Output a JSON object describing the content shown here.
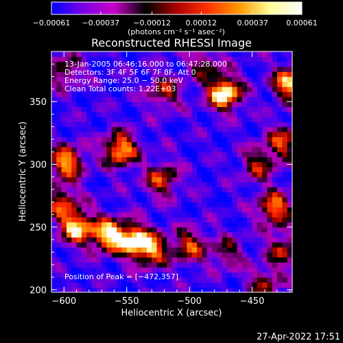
{
  "chart_data": {
    "type": "heatmap",
    "title": "Reconstructed RHESSI Image",
    "xlabel": "Heliocentric X (arcsec)",
    "ylabel": "Heliocentric Y (arcsec)",
    "xlim": [
      -610,
      -418
    ],
    "ylim": [
      198,
      390
    ],
    "x_ticks": [
      -600,
      -550,
      -500,
      -450
    ],
    "x_tick_labels": [
      "−600",
      "−550",
      "−500",
      "−450"
    ],
    "y_ticks": [
      200,
      250,
      300,
      350
    ],
    "y_tick_labels": [
      "200",
      "250",
      "300",
      "350"
    ],
    "colorbar": {
      "min": -0.00061,
      "max": 0.00061,
      "ticks": [
        -0.00061,
        -0.00037,
        -0.00012,
        0.00012,
        0.00037,
        0.00061
      ],
      "tick_labels": [
        "−0.00061",
        "−0.00037",
        "−0.00012",
        "0.00012",
        "0.00037",
        "0.00061"
      ],
      "units_label": "(photons cm⁻² s⁻¹ asec⁻²)",
      "colors": [
        "#0000ff",
        "#7a00e6",
        "#c800c8",
        "#000000",
        "#aa0000",
        "#ff3300",
        "#ff9900",
        "#ffff99",
        "#ffffff"
      ]
    },
    "annotations": [
      "13-Jan-2005 06:46:16.000 to 06:47:28.000",
      "Detectors: 3F 4F 5F 6F 7F 8F, Att 0",
      "Energy Range: 25.0 − 50.0 keV",
      "Clean     Total counts: 1.22E+03"
    ],
    "peak_label": "Position of Peak = [−472,357]",
    "peak": [
      -472,
      357
    ],
    "sources": [
      {
        "x": -472,
        "y": 357,
        "intensity": 1.0
      },
      {
        "x": -420,
        "y": 365,
        "intensity": 0.85
      },
      {
        "x": -555,
        "y": 312,
        "intensity": 0.85
      },
      {
        "x": -598,
        "y": 302,
        "intensity": 0.8
      },
      {
        "x": -522,
        "y": 288,
        "intensity": 0.6
      },
      {
        "x": -602,
        "y": 270,
        "intensity": 0.55
      },
      {
        "x": -590,
        "y": 250,
        "intensity": 0.85
      },
      {
        "x": -565,
        "y": 244,
        "intensity": 0.85
      },
      {
        "x": -545,
        "y": 240,
        "intensity": 0.8
      },
      {
        "x": -530,
        "y": 232,
        "intensity": 0.7
      },
      {
        "x": -500,
        "y": 235,
        "intensity": 0.6
      },
      {
        "x": -520,
        "y": 358,
        "intensity": 0.5
      },
      {
        "x": -488,
        "y": 380,
        "intensity": 0.4
      },
      {
        "x": -600,
        "y": 375,
        "intensity": 0.45
      },
      {
        "x": -432,
        "y": 265,
        "intensity": 0.75
      },
      {
        "x": -425,
        "y": 318,
        "intensity": 0.6
      },
      {
        "x": -445,
        "y": 300,
        "intensity": 0.5
      },
      {
        "x": -440,
        "y": 205,
        "intensity": 0.45
      },
      {
        "x": -470,
        "y": 230,
        "intensity": 0.4
      },
      {
        "x": -425,
        "y": 232,
        "intensity": 0.5
      }
    ],
    "background_level": -0.75
  },
  "footer": {
    "date": "27-Apr-2022 17:51"
  }
}
